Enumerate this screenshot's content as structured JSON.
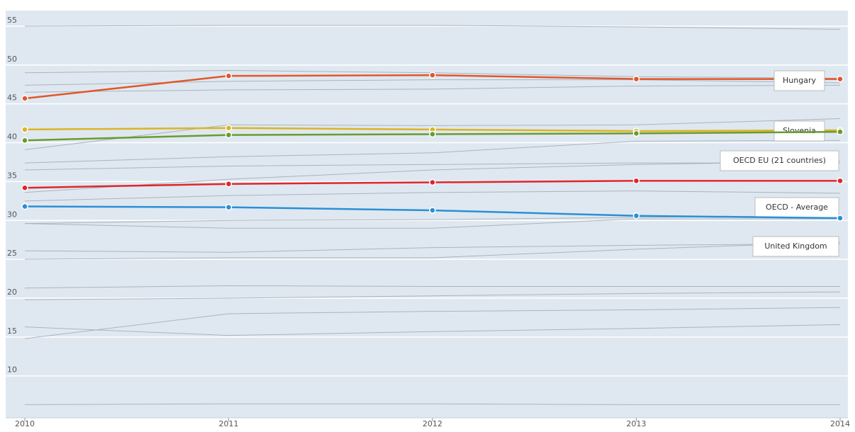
{
  "chart_data": {
    "type": "line",
    "x": [
      2010,
      2011,
      2012,
      2013,
      2014
    ],
    "xticks": [
      2010,
      2011,
      2012,
      2013,
      2014
    ],
    "ylim": [
      4.6,
      57
    ],
    "yticks": [
      10,
      15,
      20,
      25,
      30,
      35,
      40,
      45,
      50,
      55
    ],
    "grid": true,
    "series": [
      {
        "color": "#aab4bd",
        "values": [
          55.0,
          55.1,
          55.1,
          54.9,
          54.6
        ]
      },
      {
        "color": "#aab4bd",
        "values": [
          49.0,
          49.3,
          49.0,
          48.5,
          48.3
        ]
      },
      {
        "color": "#aab4bd",
        "values": [
          47.4,
          47.9,
          48.1,
          48.1,
          47.7
        ]
      },
      {
        "color": "#aab4bd",
        "values": [
          46.5,
          46.8,
          46.9,
          47.3,
          47.4
        ]
      },
      {
        "color": "#aab4bd",
        "values": [
          39.1,
          42.3,
          42.2,
          42.3,
          43.1
        ]
      },
      {
        "color": "#aab4bd",
        "values": [
          37.4,
          38.2,
          38.7,
          40.2,
          40.3
        ]
      },
      {
        "color": "#aab4bd",
        "values": [
          36.5,
          37.0,
          37.2,
          37.4,
          37.4
        ]
      },
      {
        "color": "#aab4bd",
        "values": [
          33.6,
          35.3,
          36.5,
          37.2,
          37.6
        ]
      },
      {
        "color": "#aab4bd",
        "values": [
          32.5,
          33.2,
          33.6,
          33.8,
          33.5
        ]
      },
      {
        "color": "#aab4bd",
        "values": [
          29.6,
          30.0,
          30.1,
          30.4,
          30.6
        ]
      },
      {
        "color": "#aab4bd",
        "values": [
          29.6,
          29.0,
          29.0,
          30.2,
          30.2
        ]
      },
      {
        "color": "#aab4bd",
        "values": [
          26.1,
          25.9,
          26.5,
          26.8,
          27.0
        ]
      },
      {
        "color": "#aab4bd",
        "values": [
          25.0,
          25.2,
          25.2,
          26.3,
          27.2
        ]
      },
      {
        "color": "#aab4bd",
        "values": [
          21.3,
          21.6,
          21.5,
          21.5,
          21.5
        ]
      },
      {
        "color": "#aab4bd",
        "values": [
          19.8,
          20.0,
          20.3,
          20.6,
          20.8
        ]
      },
      {
        "color": "#aab4bd",
        "values": [
          14.8,
          18.0,
          18.3,
          18.5,
          18.8
        ]
      },
      {
        "color": "#aab4bd",
        "values": [
          16.3,
          15.2,
          15.7,
          16.1,
          16.6
        ]
      },
      {
        "color": "#aab4bd",
        "values": [
          6.3,
          6.4,
          6.4,
          6.3,
          6.3
        ]
      },
      {
        "name": "Hungary",
        "color": "#e2572b",
        "values": [
          45.7,
          48.6,
          48.7,
          48.2,
          48.2
        ]
      },
      {
        "name": "Slovenia",
        "color": "#dbb424",
        "values": [
          41.7,
          41.9,
          41.7,
          41.5,
          41.6
        ]
      },
      {
        "name": "OECD EU (21 countries)",
        "color": "#6b9b2e",
        "values": [
          40.3,
          41.0,
          41.1,
          41.2,
          41.4
        ]
      },
      {
        "name": "OECD - Average",
        "color": "#e0252d",
        "values": [
          34.2,
          34.7,
          34.9,
          35.1,
          35.1
        ]
      },
      {
        "name": "United Kingdom",
        "color": "#2b8fd6",
        "values": [
          31.8,
          31.7,
          31.3,
          30.6,
          30.3
        ]
      }
    ]
  }
}
